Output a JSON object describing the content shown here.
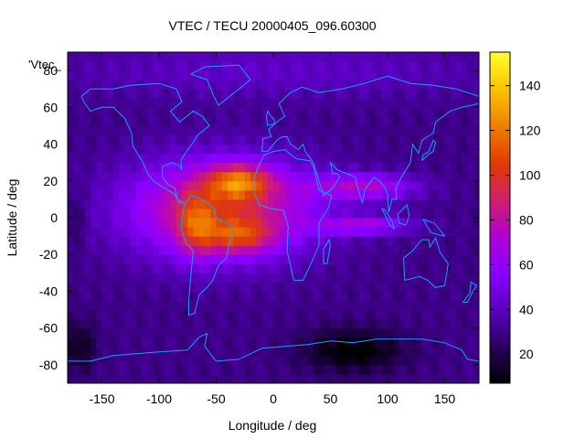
{
  "chart_data": {
    "type": "heatmap",
    "title": "VTEC / TECU 20000405_096.60300",
    "xlabel": "Longitude / deg",
    "ylabel": "Latitude / deg",
    "key_label": "'Vtec_",
    "xlim": [
      -180,
      180
    ],
    "ylim": [
      -90,
      90
    ],
    "x_ticks": [
      -150,
      -100,
      -50,
      0,
      50,
      100,
      150
    ],
    "y_ticks": [
      -80,
      -60,
      -40,
      -20,
      0,
      20,
      40,
      60,
      80
    ],
    "colorbar": {
      "range": [
        7,
        155
      ],
      "ticks": [
        20,
        40,
        60,
        80,
        100,
        120,
        140
      ],
      "palette": [
        "#000000",
        "#2a0060",
        "#5a00c0",
        "#8a00ff",
        "#b000d0",
        "#d0206a",
        "#e03c00",
        "#f08000",
        "#fac400",
        "#ffff30"
      ]
    },
    "grid": {
      "lon_step": 5,
      "lat_step": 5,
      "background_tecu": 30,
      "features": [
        {
          "name": "equatorial band",
          "lon": -45,
          "lat": 5,
          "sigma_lon": 80,
          "sigma_lat": 26,
          "tecu": 65
        },
        {
          "name": "Atlantic crest north",
          "lon": -30,
          "lat": 20,
          "sigma_lon": 28,
          "sigma_lat": 9,
          "tecu": 55
        },
        {
          "name": "Atlantic crest south",
          "lon": -30,
          "lat": -10,
          "sigma_lon": 30,
          "sigma_lat": 9,
          "tecu": 40
        },
        {
          "name": "South America",
          "lon": -68,
          "lat": -5,
          "sigma_lon": 16,
          "sigma_lat": 16,
          "tecu": 35
        },
        {
          "name": "Africa/Asia northern tongue",
          "lon": 80,
          "lat": 17,
          "sigma_lon": 45,
          "sigma_lat": 7,
          "tecu": 40
        },
        {
          "name": "Africa/Asia southern tongue",
          "lon": 80,
          "lat": -4,
          "sigma_lon": 40,
          "sigma_lat": 5,
          "tecu": 35
        },
        {
          "name": "southern depletion",
          "lon": 70,
          "lat": -72,
          "sigma_lon": 45,
          "sigma_lat": 12,
          "tecu": -25
        },
        {
          "name": "south-west depletion",
          "lon": -170,
          "lat": -70,
          "sigma_lon": 15,
          "sigma_lat": 14,
          "tecu": -18
        },
        {
          "name": "west equatorial depletion",
          "lon": -175,
          "lat": 0,
          "sigma_lon": 10,
          "sigma_lat": 15,
          "tecu": -10
        },
        {
          "name": "polar cap",
          "lon": 0,
          "lat": 80,
          "sigma_lon": 200,
          "sigma_lat": 15,
          "tecu": 12
        }
      ]
    },
    "coastlines": [
      {
        "name": "North America",
        "points": [
          [
            -168,
            66
          ],
          [
            -160,
            70
          ],
          [
            -140,
            70
          ],
          [
            -125,
            72
          ],
          [
            -100,
            73
          ],
          [
            -85,
            70
          ],
          [
            -80,
            63
          ],
          [
            -90,
            58
          ],
          [
            -82,
            52
          ],
          [
            -70,
            58
          ],
          [
            -62,
            55
          ],
          [
            -56,
            50
          ],
          [
            -66,
            45
          ],
          [
            -70,
            41
          ],
          [
            -76,
            36
          ],
          [
            -81,
            31
          ],
          [
            -80,
            26
          ],
          [
            -82,
            28
          ],
          [
            -88,
            30
          ],
          [
            -97,
            28
          ],
          [
            -97,
            22
          ],
          [
            -92,
            18
          ],
          [
            -86,
            16
          ],
          [
            -84,
            10
          ],
          [
            -78,
            8
          ],
          [
            -82,
            8
          ],
          [
            -87,
            13
          ],
          [
            -95,
            16
          ],
          [
            -105,
            20
          ],
          [
            -110,
            24
          ],
          [
            -114,
            30
          ],
          [
            -118,
            34
          ],
          [
            -123,
            39
          ],
          [
            -124,
            46
          ],
          [
            -130,
            54
          ],
          [
            -140,
            60
          ],
          [
            -150,
            60
          ],
          [
            -160,
            58
          ],
          [
            -165,
            62
          ],
          [
            -168,
            66
          ]
        ]
      },
      {
        "name": "South America",
        "points": [
          [
            -77,
            8
          ],
          [
            -72,
            12
          ],
          [
            -62,
            10
          ],
          [
            -52,
            5
          ],
          [
            -50,
            0
          ],
          [
            -44,
            -2
          ],
          [
            -35,
            -5
          ],
          [
            -35,
            -9
          ],
          [
            -39,
            -15
          ],
          [
            -41,
            -22
          ],
          [
            -48,
            -26
          ],
          [
            -53,
            -34
          ],
          [
            -58,
            -38
          ],
          [
            -65,
            -42
          ],
          [
            -67,
            -47
          ],
          [
            -69,
            -52
          ],
          [
            -74,
            -53
          ],
          [
            -74,
            -45
          ],
          [
            -72,
            -30
          ],
          [
            -70,
            -18
          ],
          [
            -76,
            -14
          ],
          [
            -81,
            -6
          ],
          [
            -80,
            0
          ],
          [
            -77,
            8
          ]
        ]
      },
      {
        "name": "Africa",
        "points": [
          [
            -17,
            21
          ],
          [
            -13,
            28
          ],
          [
            -8,
            34
          ],
          [
            0,
            36
          ],
          [
            10,
            37
          ],
          [
            20,
            32
          ],
          [
            32,
            31
          ],
          [
            35,
            28
          ],
          [
            40,
            15
          ],
          [
            51,
            12
          ],
          [
            48,
            5
          ],
          [
            40,
            -3
          ],
          [
            40,
            -15
          ],
          [
            33,
            -25
          ],
          [
            26,
            -34
          ],
          [
            18,
            -34
          ],
          [
            12,
            -18
          ],
          [
            13,
            -5
          ],
          [
            9,
            4
          ],
          [
            -3,
            5
          ],
          [
            -12,
            7
          ],
          [
            -17,
            14
          ],
          [
            -17,
            21
          ]
        ]
      },
      {
        "name": "Eurasia",
        "points": [
          [
            -10,
            36
          ],
          [
            -9,
            43
          ],
          [
            -2,
            44
          ],
          [
            -4,
            48
          ],
          [
            5,
            53
          ],
          [
            10,
            55
          ],
          [
            5,
            62
          ],
          [
            15,
            68
          ],
          [
            25,
            71
          ],
          [
            40,
            68
          ],
          [
            60,
            70
          ],
          [
            80,
            73
          ],
          [
            100,
            77
          ],
          [
            120,
            73
          ],
          [
            140,
            72
          ],
          [
            160,
            70
          ],
          [
            180,
            66
          ],
          [
            180,
            62
          ],
          [
            165,
            60
          ],
          [
            155,
            58
          ],
          [
            142,
            52
          ],
          [
            140,
            46
          ],
          [
            130,
            42
          ],
          [
            127,
            35
          ],
          [
            122,
            40
          ],
          [
            120,
            30
          ],
          [
            112,
            22
          ],
          [
            107,
            16
          ],
          [
            108,
            10
          ],
          [
            104,
            10
          ],
          [
            101,
            3
          ],
          [
            100,
            13
          ],
          [
            98,
            16
          ],
          [
            93,
            20
          ],
          [
            88,
            22
          ],
          [
            80,
            15
          ],
          [
            78,
            8
          ],
          [
            73,
            18
          ],
          [
            72,
            22
          ],
          [
            60,
            25
          ],
          [
            56,
            26
          ],
          [
            50,
            30
          ],
          [
            52,
            24
          ],
          [
            56,
            24
          ],
          [
            58,
            22
          ],
          [
            52,
            16
          ],
          [
            44,
            12
          ],
          [
            40,
            20
          ],
          [
            35,
            30
          ],
          [
            28,
            36
          ],
          [
            26,
            40
          ],
          [
            22,
            37
          ],
          [
            15,
            40
          ],
          [
            12,
            44
          ],
          [
            8,
            44
          ],
          [
            3,
            42
          ],
          [
            -5,
            36
          ],
          [
            -10,
            36
          ]
        ]
      },
      {
        "name": "Australia",
        "points": [
          [
            114,
            -22
          ],
          [
            122,
            -18
          ],
          [
            130,
            -12
          ],
          [
            136,
            -12
          ],
          [
            137,
            -16
          ],
          [
            142,
            -11
          ],
          [
            146,
            -19
          ],
          [
            153,
            -25
          ],
          [
            150,
            -37
          ],
          [
            142,
            -38
          ],
          [
            135,
            -34
          ],
          [
            128,
            -32
          ],
          [
            115,
            -34
          ],
          [
            114,
            -22
          ]
        ]
      },
      {
        "name": "Greenland",
        "points": [
          [
            -72,
            78
          ],
          [
            -60,
            82
          ],
          [
            -30,
            83
          ],
          [
            -20,
            75
          ],
          [
            -40,
            65
          ],
          [
            -48,
            61
          ],
          [
            -52,
            66
          ],
          [
            -58,
            75
          ],
          [
            -72,
            78
          ]
        ]
      },
      {
        "name": "Great Britain",
        "points": [
          [
            -5,
            50
          ],
          [
            1,
            51
          ],
          [
            1,
            53
          ],
          [
            -3,
            56
          ],
          [
            -5,
            58
          ],
          [
            -6,
            55
          ],
          [
            -5,
            50
          ]
        ]
      },
      {
        "name": "Japan",
        "points": [
          [
            130,
            31
          ],
          [
            135,
            34
          ],
          [
            140,
            36
          ],
          [
            142,
            41
          ],
          [
            140,
            42
          ],
          [
            136,
            36
          ],
          [
            131,
            34
          ],
          [
            130,
            31
          ]
        ]
      },
      {
        "name": "Madagascar",
        "points": [
          [
            44,
            -25
          ],
          [
            47,
            -25
          ],
          [
            50,
            -15
          ],
          [
            49,
            -12
          ],
          [
            44,
            -17
          ],
          [
            44,
            -25
          ]
        ]
      },
      {
        "name": "New Zealand",
        "points": [
          [
            166,
            -46
          ],
          [
            170,
            -46
          ],
          [
            174,
            -41
          ],
          [
            178,
            -37
          ],
          [
            173,
            -35
          ],
          [
            172,
            -41
          ],
          [
            166,
            -46
          ]
        ]
      },
      {
        "name": "Borneo",
        "points": [
          [
            109,
            2
          ],
          [
            117,
            7
          ],
          [
            119,
            1
          ],
          [
            116,
            -4
          ],
          [
            110,
            -3
          ],
          [
            109,
            2
          ]
        ]
      },
      {
        "name": "Sumatra",
        "points": [
          [
            95,
            5
          ],
          [
            98,
            4
          ],
          [
            104,
            -2
          ],
          [
            106,
            -6
          ],
          [
            102,
            -4
          ],
          [
            95,
            5
          ]
        ]
      },
      {
        "name": "New Guinea",
        "points": [
          [
            131,
            -1
          ],
          [
            141,
            -3
          ],
          [
            150,
            -10
          ],
          [
            143,
            -9
          ],
          [
            138,
            -8
          ],
          [
            131,
            -1
          ]
        ]
      },
      {
        "name": "Antarctica",
        "points": [
          [
            -180,
            -84
          ],
          [
            -180,
            -78
          ],
          [
            -160,
            -78
          ],
          [
            -140,
            -75
          ],
          [
            -120,
            -74
          ],
          [
            -100,
            -73
          ],
          [
            -75,
            -72
          ],
          [
            -65,
            -65
          ],
          [
            -58,
            -63
          ],
          [
            -60,
            -70
          ],
          [
            -50,
            -78
          ],
          [
            -30,
            -77
          ],
          [
            -10,
            -71
          ],
          [
            10,
            -70
          ],
          [
            30,
            -69
          ],
          [
            50,
            -67
          ],
          [
            70,
            -68
          ],
          [
            90,
            -66
          ],
          [
            110,
            -66
          ],
          [
            130,
            -66
          ],
          [
            150,
            -68
          ],
          [
            165,
            -72
          ],
          [
            170,
            -77
          ],
          [
            180,
            -78
          ],
          [
            180,
            -84
          ]
        ]
      }
    ]
  }
}
